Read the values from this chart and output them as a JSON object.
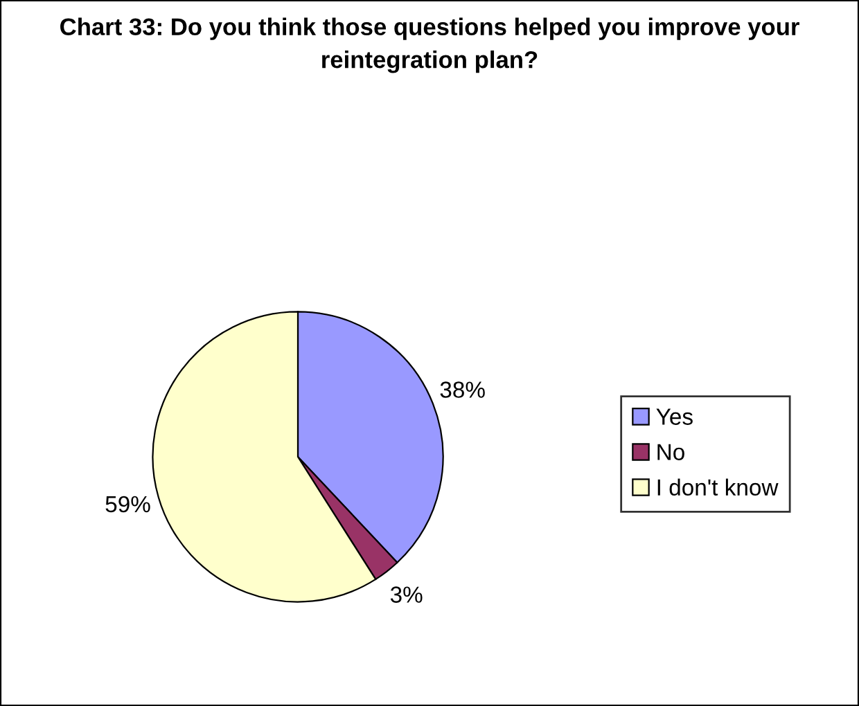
{
  "chart_data": {
    "type": "pie",
    "title": "Chart 33: Do you think those questions helped you improve your reintegration plan?",
    "categories": [
      "Yes",
      "No",
      "I don't know"
    ],
    "values": [
      38,
      3,
      59
    ],
    "colors": [
      "#9999ff",
      "#993366",
      "#ffffcc"
    ],
    "value_labels": [
      "38%",
      "3%",
      "59%"
    ],
    "legend": "right"
  }
}
